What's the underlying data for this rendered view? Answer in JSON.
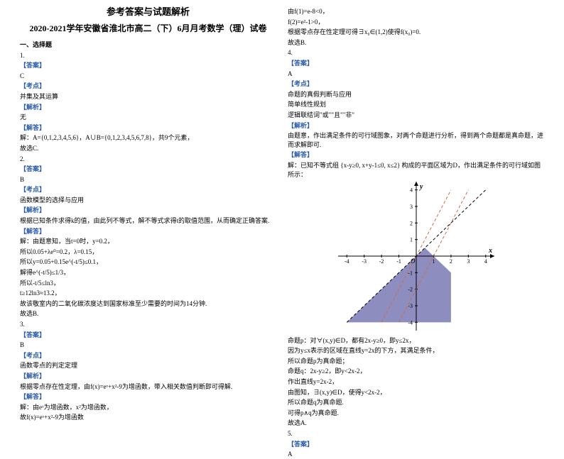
{
  "header": {
    "title": "参考答案与试题解析",
    "subtitle": "2020-2021学年安徽省淮北市高二（下）6月月考数学（理）试卷"
  },
  "left": {
    "sec1": "一、选择题",
    "q1": "1.",
    "ans": "【答案】",
    "ans1": "C",
    "kd": "【考点】",
    "kd1": "并集及其运算",
    "jx": "【解析】",
    "jx1": "无",
    "jd": "【解答】",
    "jd1a": "解：A={0,1,2,3,4,5,6}，A∪B={0,1,2,3,4,5,6,7,8}，共9个元素，",
    "jd1b": "故选C.",
    "q2": "2.",
    "ans2": "B",
    "kd2": "函数模型的选择与应用",
    "jx2": "根据已知条件求得k的值，由此列不等式，解不等式求得t的取值范围，从而确定正确答案.",
    "jd2a": "解：由题意知，当t=0时，y=0.2，",
    "jd2b": "所以0.05+λe⁰=0.2，λ=0.15，",
    "q2l1": "所以y=0.05+0.15e^(-t/5)≤0.1，",
    "q2l2": "解得e^(-t/5)≤1/3，",
    "q2l3": "所以-t/5≤ln3，",
    "q2l4": "t≥12ln3≈13.2，",
    "q2l5": "故该敬室内的二氧化碳浓度达到国家标准至少需要的时间为14分钟.",
    "q2l6": "故选B.",
    "q3": "3.",
    "ans3": "B",
    "kd3": "函数零点的判定定理",
    "jx3": "根据零点存在性定理，由f(x)=eˣ+x²-9为增函数，带入相关数值判断即可得解.",
    "jd3a": "解：由eˣ为增函数，x²为增函数，",
    "jd3b": "故f(x)=eˣ+x²-9为增函数"
  },
  "right": {
    "r1": "由f(1)=e-8<0，",
    "r2": "f(2)=e²-1>0，",
    "r3": "根据零点存在性定理可得∃x₀∈(1,2)使得f(x₀)=0.",
    "r4": "故选B.",
    "q4": "4.",
    "ans4": "A",
    "kd4a": "命题的真假判断与应用",
    "kd4b": "简单线性规划",
    "kd4c": "逻辑联结词\"或\"\"且\"\"非\"",
    "jx4": "由题意，作出满足条件的可行域图象，对两个命题进行分析，得到两个命题都是真命题，进而求解即可.",
    "jd4": "解：已知不等式组 {x-y≥0, x+y-1≤0, x≤2} 构成的平面区域为D，作出满足条件的可行域如图所示：",
    "chart": {
      "type": "region-plot",
      "xlim": [
        -4.5,
        4.5
      ],
      "ylim": [
        -4.5,
        4.5
      ],
      "xticks": [
        -4,
        -3,
        -2,
        -1,
        1,
        2,
        3,
        4
      ],
      "yticks": [
        -4,
        -3,
        -2,
        -1,
        1,
        2,
        3,
        4
      ],
      "axis_color": "#000000",
      "tick_fontsize": 8,
      "label_x": "x",
      "label_y": "y",
      "origin_label": "O",
      "lines": [
        {
          "desc": "y=2x",
          "color": "#d06a3d",
          "dash": "4,3",
          "pts": [
            [
              -2,
              -4
            ],
            [
              2,
              4
            ]
          ]
        },
        {
          "desc": "y=2x-2",
          "color": "#d06a3d",
          "dash": "4,3",
          "pts": [
            [
              -1,
              -4
            ],
            [
              3,
              4
            ]
          ]
        },
        {
          "desc": "y=x",
          "color": "#000000",
          "dash": "4,3",
          "pts": [
            [
              -4,
              -4
            ],
            [
              4,
              4
            ]
          ]
        }
      ],
      "region": {
        "color": "#7a79b5",
        "opacity": 0.85,
        "pts": [
          [
            0.5,
            0.5
          ],
          [
            2,
            -1
          ],
          [
            2,
            -4
          ],
          [
            -4,
            -4
          ],
          [
            -1,
            -1
          ]
        ]
      }
    },
    "after_chart": [
      "命题p：对∀(x,y)∈D，都有2x-y≥0，即y≤2x，",
      "因为y≤x表示的区域在直线y=2x的下方，其满足条件，",
      "所以命题p为真命题；",
      "命题q：2x-y≥2，即y<2x-2，",
      "作出直线y=2x-2，",
      "由图知，∃(x,y)∈D，使得y<2x-2，",
      "所以命题q为真命题.",
      "可得p∧q为真命题.",
      "故选A."
    ],
    "q5": "5.",
    "ans5": "A"
  }
}
